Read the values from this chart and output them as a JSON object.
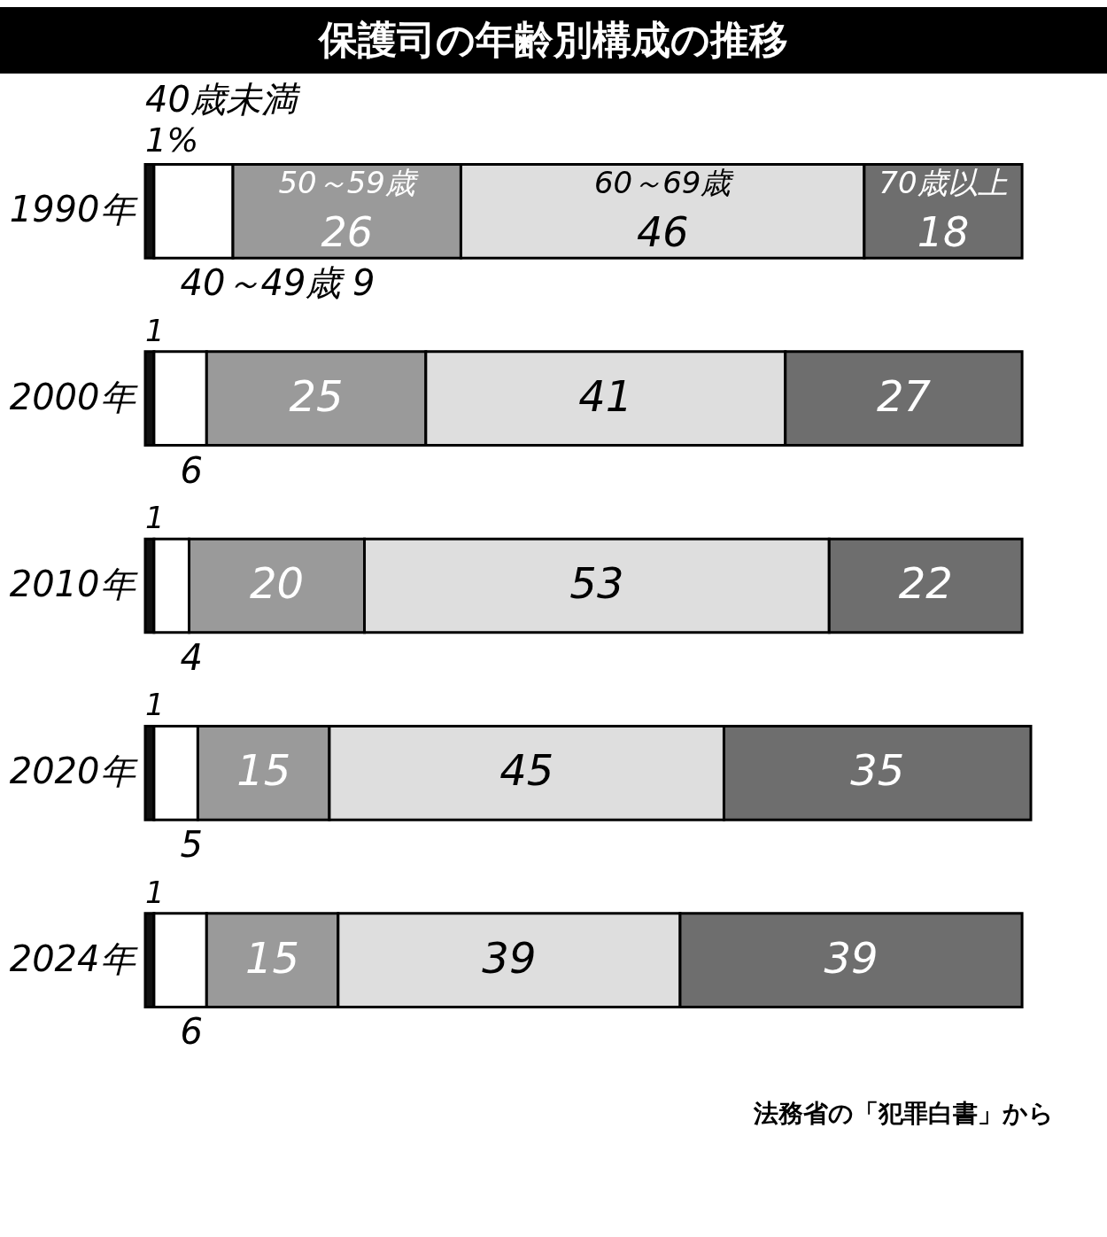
{
  "chart_data": {
    "type": "bar",
    "orientation": "horizontal",
    "stacked": true,
    "title": "保護司の年齢別構成の推移",
    "categories": [
      "1990年",
      "2000年",
      "2010年",
      "2020年",
      "2024年"
    ],
    "series": [
      {
        "name": "40歳未満",
        "color": "#111111",
        "values": [
          1,
          1,
          1,
          1,
          1
        ],
        "value_labels": [
          "1%",
          "1",
          "1",
          "1",
          "1"
        ]
      },
      {
        "name": "40～49歳",
        "color": "#ffffff",
        "values": [
          9,
          6,
          4,
          5,
          6
        ],
        "value_labels": [
          "9",
          "6",
          "4",
          "5",
          "6"
        ]
      },
      {
        "name": "50～59歳",
        "color": "#9a9a9a",
        "values": [
          26,
          25,
          20,
          15,
          15
        ],
        "value_labels": [
          "26",
          "25",
          "20",
          "15",
          "15"
        ]
      },
      {
        "name": "60～69歳",
        "color": "#dedede",
        "values": [
          46,
          41,
          53,
          45,
          39
        ],
        "value_labels": [
          "46",
          "41",
          "53",
          "45",
          "39"
        ]
      },
      {
        "name": "70歳以上",
        "color": "#6e6e6e",
        "values": [
          18,
          27,
          22,
          35,
          39
        ],
        "value_labels": [
          "18",
          "27",
          "22",
          "35",
          "39"
        ]
      }
    ],
    "tick_labels": "y",
    "legend": false,
    "grid": false,
    "annotations": [
      "法務省の「犯罪白書」から"
    ]
  }
}
